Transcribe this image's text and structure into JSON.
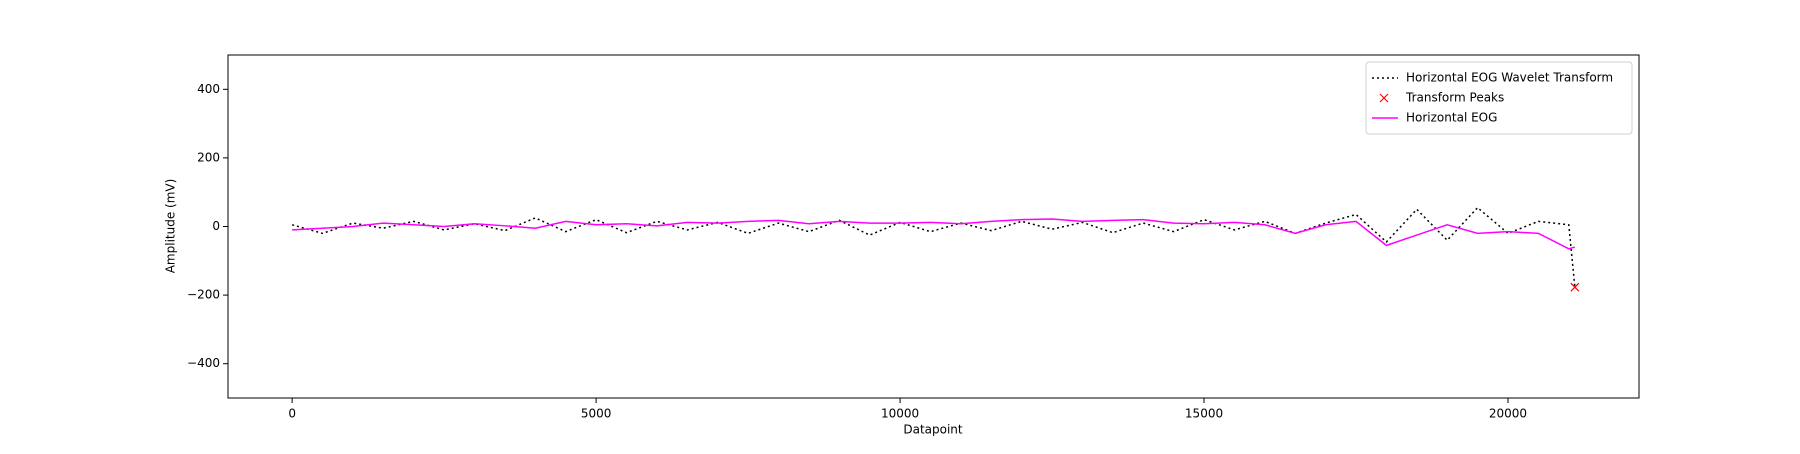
{
  "chart_data": {
    "type": "line",
    "xlabel": "Datapoint",
    "ylabel": "Amplitude (mV)",
    "xlim": [
      -1055,
      22155
    ],
    "ylim": [
      -500,
      500
    ],
    "xticks": [
      0,
      5000,
      10000,
      15000,
      20000
    ],
    "yticks": [
      {
        "value": -400,
        "label": "−400"
      },
      {
        "value": -200,
        "label": "−200"
      },
      0,
      200,
      400
    ],
    "legend": "upper right",
    "x": [
      0,
      500,
      1000,
      1500,
      2000,
      2500,
      3000,
      3500,
      4000,
      4500,
      5000,
      5500,
      6000,
      6500,
      7000,
      7500,
      8000,
      8500,
      9000,
      9500,
      10000,
      10500,
      11000,
      11500,
      12000,
      12500,
      13000,
      13500,
      14000,
      14500,
      15000,
      15500,
      16000,
      16500,
      17000,
      17500,
      18000,
      18500,
      19000,
      19500,
      20000,
      20500,
      21000,
      21100
    ],
    "series": [
      {
        "name": "Horizontal EOG Wavelet Transform",
        "color": "#000000",
        "linestyle": "dotted",
        "values": [
          5,
          -20,
          10,
          -5,
          15,
          -10,
          8,
          -12,
          25,
          -15,
          20,
          -18,
          15,
          -10,
          12,
          -20,
          10,
          -15,
          18,
          -25,
          12,
          -15,
          10,
          -12,
          15,
          -8,
          12,
          -18,
          10,
          -15,
          20,
          -10,
          15,
          -20,
          10,
          35,
          -45,
          50,
          -40,
          55,
          -20,
          15,
          5,
          -177
        ]
      },
      {
        "name": "Transform Peaks",
        "color": "#ff0000",
        "marker": "x",
        "x": [
          21100
        ],
        "values": [
          -177
        ]
      },
      {
        "name": "Horizontal EOG",
        "color": "#ff00ff",
        "linestyle": "solid",
        "values": [
          -10,
          -5,
          0,
          10,
          5,
          0,
          8,
          2,
          -5,
          15,
          5,
          8,
          2,
          12,
          10,
          15,
          18,
          8,
          15,
          10,
          10,
          12,
          8,
          15,
          20,
          22,
          15,
          18,
          20,
          10,
          8,
          12,
          5,
          -20,
          5,
          15,
          -55,
          -25,
          5,
          -20,
          -15,
          -20,
          -65,
          -60
        ]
      }
    ]
  }
}
